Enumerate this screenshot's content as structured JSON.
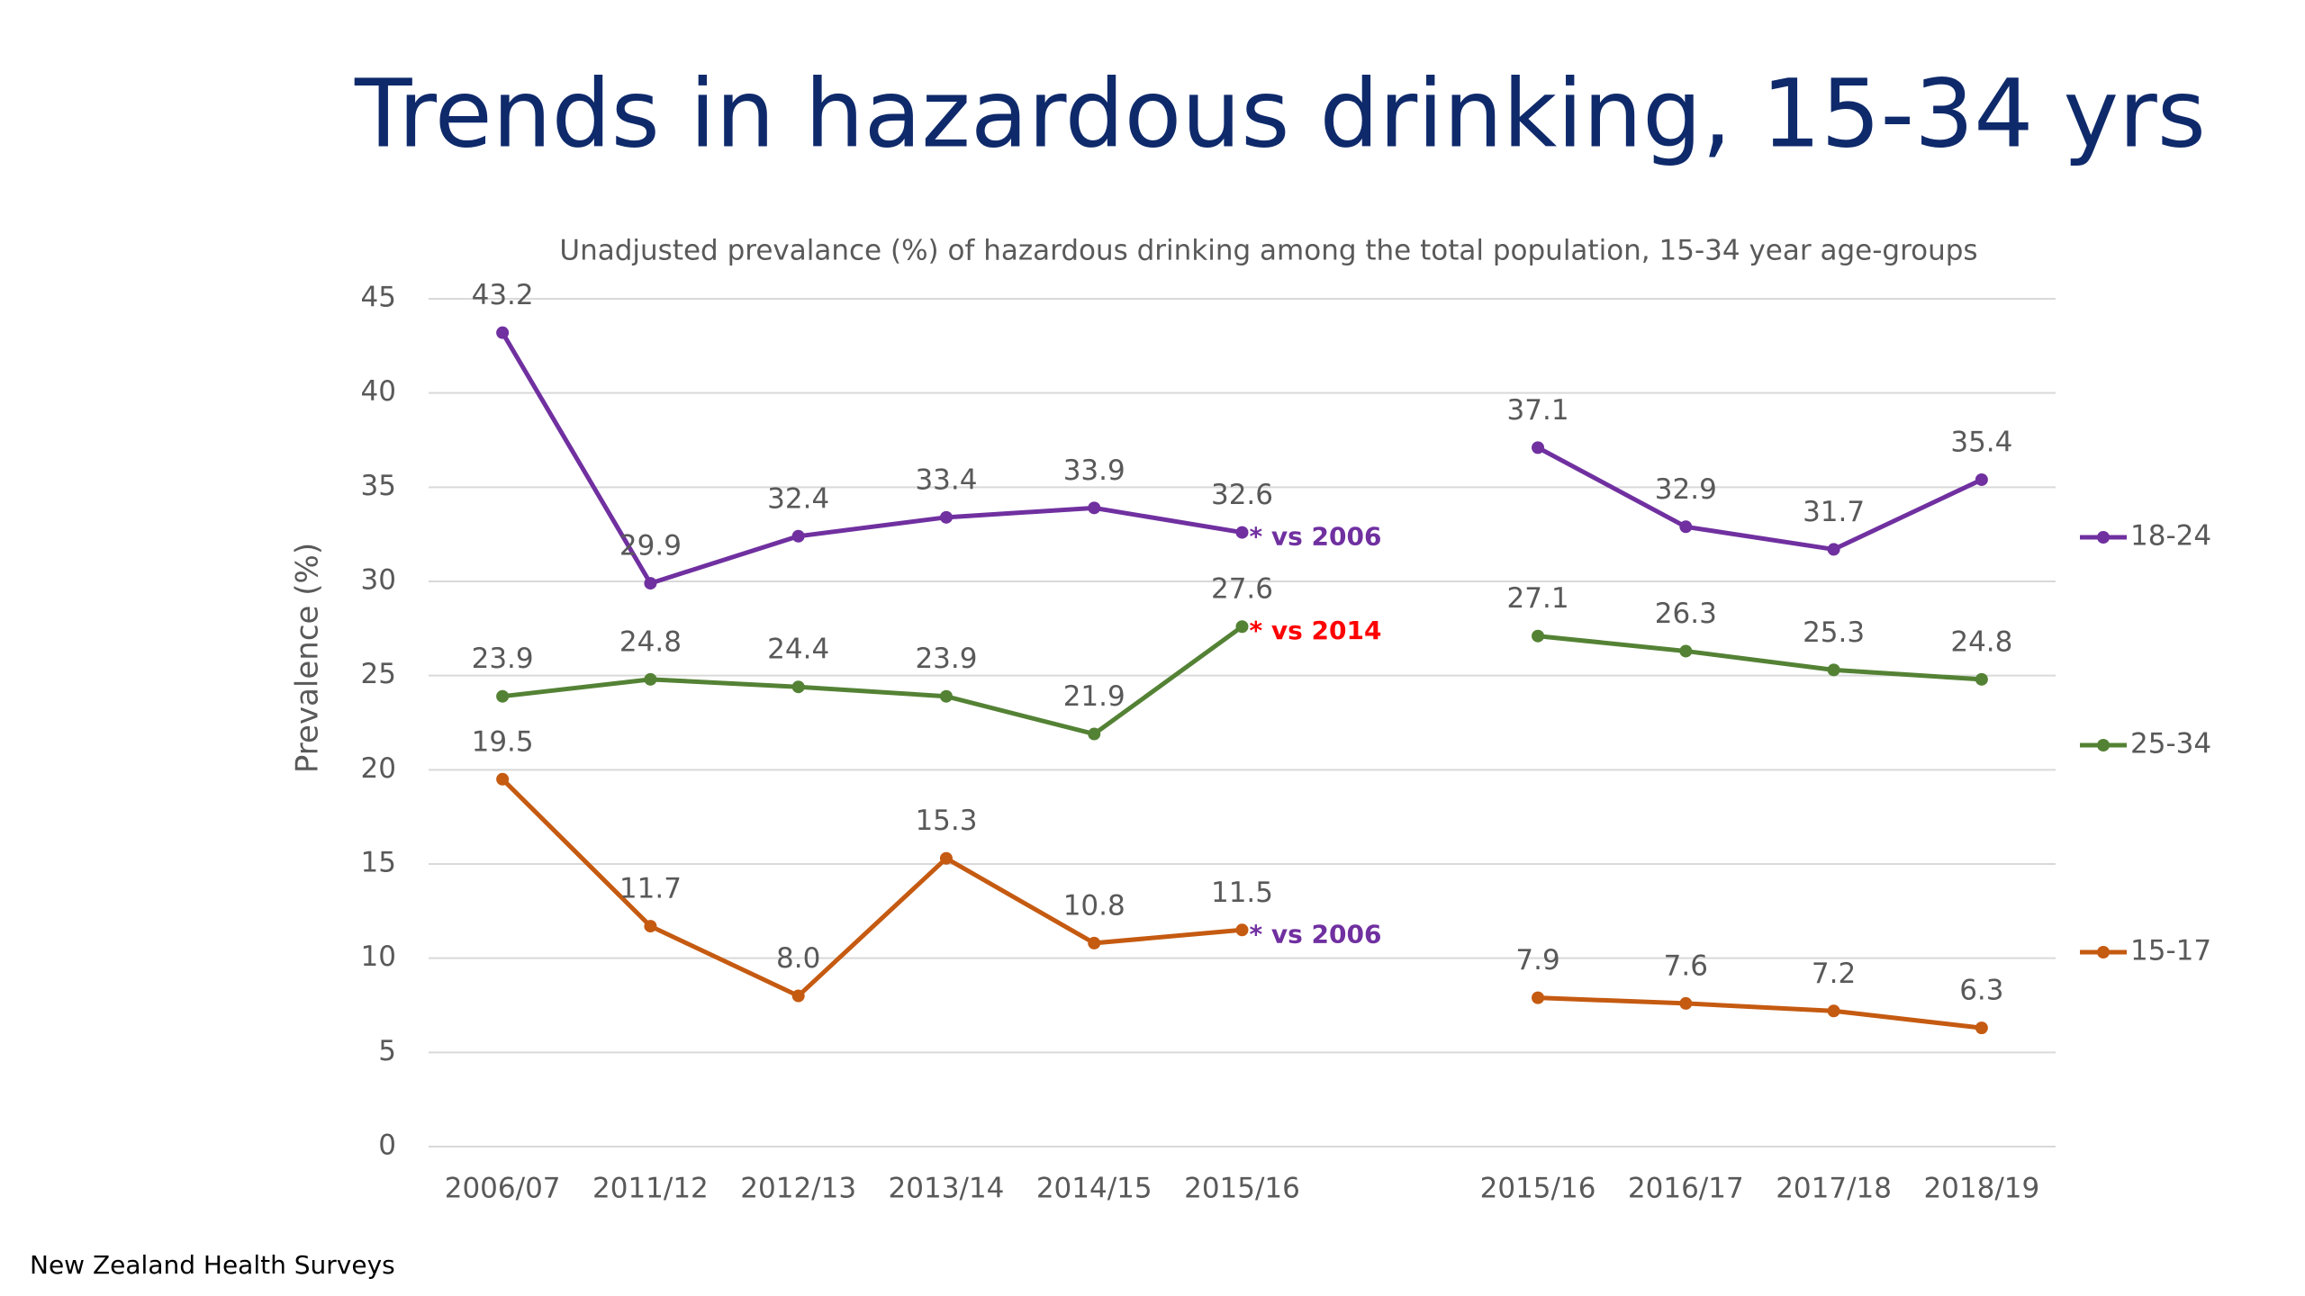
{
  "chart_data": {
    "type": "line",
    "title": "Trends in hazardous drinking, 15-34 yrs",
    "subtitle": "Unadjusted prevalance (%) of hazardous drinking among the total population, 15-34 year age-groups",
    "y_label": "Prevalence (%)",
    "source": "New Zealand Health Surveys",
    "categories": [
      "2006/07",
      "2011/12",
      "2012/13",
      "2013/14",
      "2014/15",
      "2015/16",
      null,
      "2015/16",
      "2016/17",
      "2017/18",
      "2018/19"
    ],
    "series": [
      {
        "name": "18-24",
        "color": "#7030a0",
        "values": [
          43.2,
          29.9,
          32.4,
          33.4,
          33.9,
          32.6,
          null,
          37.1,
          32.9,
          31.7,
          35.4
        ],
        "annotation": {
          "text": "* vs 2006",
          "color": "#7030a0"
        }
      },
      {
        "name": "25-34",
        "color": "#548235",
        "values": [
          23.9,
          24.8,
          24.4,
          23.9,
          21.9,
          27.6,
          null,
          27.1,
          26.3,
          25.3,
          24.8
        ],
        "annotation": {
          "text": "* vs 2014",
          "color": "#ff0000"
        }
      },
      {
        "name": "15-17",
        "color": "#c55a11",
        "values": [
          19.5,
          11.7,
          8,
          15.3,
          10.8,
          11.5,
          null,
          7.9,
          7.6,
          7.2,
          6.3
        ],
        "value_labels": [
          "19.5",
          "11.7",
          "8.0",
          "15.3",
          "10.8",
          "11.5",
          null,
          "7.9",
          "7.6",
          "7.2",
          "6.3"
        ],
        "annotation": {
          "text": "* vs 2006",
          "color": "#7030a0"
        }
      }
    ],
    "ylim": [
      0,
      45
    ],
    "yticks": [
      0,
      5,
      10,
      15,
      20,
      25,
      30,
      35,
      40,
      45
    ],
    "grid": true
  }
}
